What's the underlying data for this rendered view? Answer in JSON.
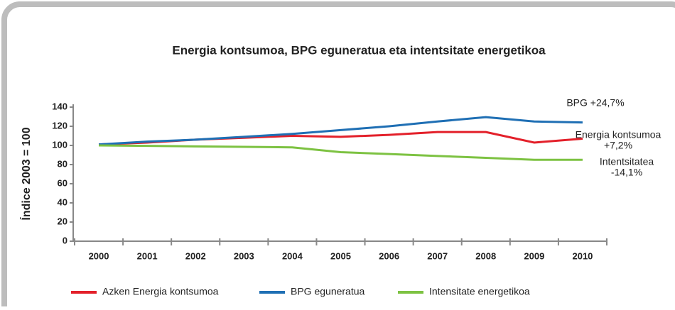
{
  "chart_data": {
    "type": "line",
    "title": "Energia kontsumoa, BPG eguneratua eta intentsitate energetikoa",
    "ylabel": "Índice 2003 = 100",
    "categories": [
      "2000",
      "2001",
      "2002",
      "2003",
      "2004",
      "2005",
      "2006",
      "2007",
      "2008",
      "2009",
      "2010"
    ],
    "series": [
      {
        "name": "Azken Energia kontsumoa",
        "color": "#e3202a",
        "values": [
          101,
          103,
          106,
          108,
          110,
          109,
          111,
          114,
          114,
          103,
          107
        ]
      },
      {
        "name": "BPG eguneratua",
        "color": "#1f6fb4",
        "values": [
          101,
          104,
          106,
          109,
          112,
          116,
          120,
          125,
          129.5,
          125,
          124
        ]
      },
      {
        "name": "Intensitate energetikoa",
        "color": "#7dc242",
        "values": [
          100,
          99.5,
          99,
          98.5,
          98,
          93,
          91,
          89,
          87,
          85,
          85
        ]
      }
    ],
    "ylim": [
      0,
      140
    ],
    "yticks": [
      0,
      20,
      40,
      60,
      80,
      100,
      120,
      140
    ],
    "annotations": [
      [
        "BPG +24,7%"
      ],
      [
        "Energia kontsumoa",
        "+7,2%"
      ],
      [
        "Intentsitatea",
        "-14,1%"
      ]
    ],
    "legend": "bottom"
  }
}
